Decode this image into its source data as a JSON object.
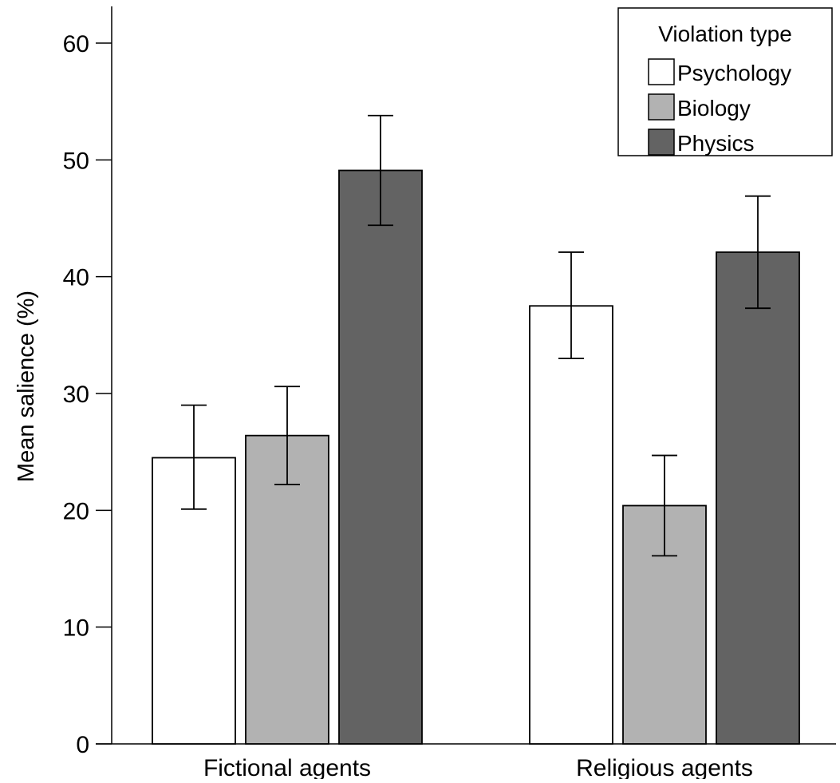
{
  "chart_data": {
    "type": "bar",
    "title": "",
    "xlabel": "",
    "ylabel": "Mean salience (%)",
    "ylim": [
      0,
      62
    ],
    "yticks": [
      0,
      10,
      20,
      30,
      40,
      50,
      60
    ],
    "categories": [
      "Fictional agents",
      "Religious agents"
    ],
    "series": [
      {
        "name": "Psychology",
        "color": "#ffffff",
        "values": [
          24.5,
          37.5
        ],
        "error_low": [
          20.1,
          33.0
        ],
        "error_high": [
          29.0,
          42.1
        ]
      },
      {
        "name": "Biology",
        "color": "#b2b2b2",
        "values": [
          26.4,
          20.4
        ],
        "error_low": [
          22.2,
          16.1
        ],
        "error_high": [
          30.6,
          24.7
        ]
      },
      {
        "name": "Physics",
        "color": "#636363",
        "values": [
          49.1,
          42.1
        ],
        "error_low": [
          44.4,
          37.3
        ],
        "error_high": [
          53.8,
          46.9
        ]
      }
    ],
    "legend": {
      "title": "Violation type",
      "placement": "top-right"
    },
    "grid": false
  }
}
